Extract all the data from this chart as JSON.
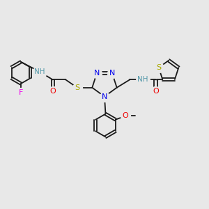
{
  "bg_color": "#e8e8e8",
  "bond_color": "#1a1a1a",
  "bond_width": 1.3,
  "atom_colors": {
    "N": "#0000ee",
    "S": "#aaaa00",
    "O": "#ee0000",
    "F": "#ee00ee",
    "NH": "#5599aa",
    "C": "#1a1a1a"
  },
  "fig_size": [
    3.0,
    3.0
  ],
  "dpi": 100
}
